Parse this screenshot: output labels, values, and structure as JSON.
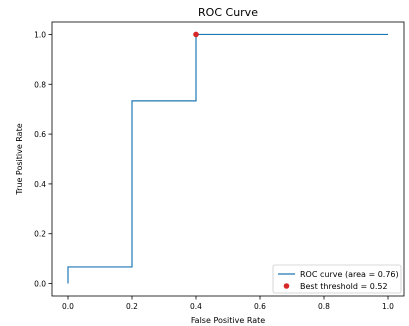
{
  "chart_data": {
    "type": "line",
    "title": "ROC Curve",
    "xlabel": "False Positive Rate",
    "ylabel": "True Positive Rate",
    "xlim": [
      -0.05,
      1.05
    ],
    "ylim": [
      -0.05,
      1.05
    ],
    "xticks": [
      "0.0",
      "0.2",
      "0.4",
      "0.6",
      "0.8",
      "1.0"
    ],
    "yticks": [
      "0.0",
      "0.2",
      "0.4",
      "0.6",
      "0.8",
      "1.0"
    ],
    "grid": false,
    "legend_position": "bottom-right",
    "series": [
      {
        "name": "ROC curve (area = 0.76)",
        "color": "#1f77b4",
        "x": [
          0.0,
          0.0,
          0.2,
          0.2,
          0.4,
          0.4,
          1.0
        ],
        "y": [
          0.0,
          0.0667,
          0.0667,
          0.7333,
          0.7333,
          1.0,
          1.0
        ]
      }
    ],
    "points": [
      {
        "name": "Best threshold = 0.52",
        "color": "#d62728",
        "x": 0.4,
        "y": 1.0
      }
    ]
  }
}
